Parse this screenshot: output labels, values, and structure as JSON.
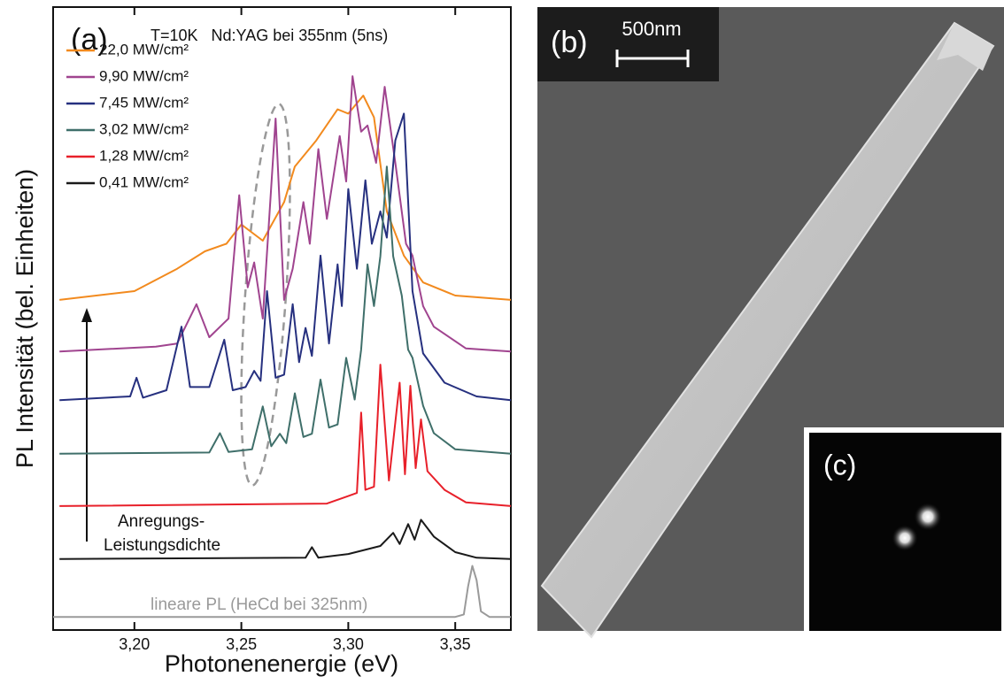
{
  "chart_data": {
    "type": "line",
    "panel_label": "(a)",
    "title": "T=10K   Nd:YAG bei 355nm (5ns)",
    "xlabel": "Photonenenergie (eV)",
    "ylabel": "PL Intensität (bel. Einheiten)",
    "arrow_label": [
      "Anregungs-",
      "Leistungsdichte"
    ],
    "xlim": [
      3.162,
      3.376
    ],
    "ylim": [
      0,
      100
    ],
    "xticks": [
      {
        "value": 3.2,
        "label": "3,20"
      },
      {
        "value": 3.25,
        "label": "3,25"
      },
      {
        "value": 3.3,
        "label": "3,30"
      },
      {
        "value": 3.35,
        "label": "3,35"
      }
    ],
    "legend": "upper left",
    "series": [
      {
        "name": "22,0 MW/cm²",
        "color": "#f28a1e",
        "x": [
          3.165,
          3.2,
          3.22,
          3.233,
          3.243,
          3.25,
          3.26,
          3.27,
          3.275,
          3.285,
          3.295,
          3.3,
          3.307,
          3.312,
          3.318,
          3.326,
          3.335,
          3.35,
          3.376
        ],
        "values": [
          53,
          54.4,
          58,
          60.8,
          62,
          65.1,
          62.5,
          68.7,
          74.4,
          78.6,
          83.6,
          82.9,
          85.8,
          82.3,
          67.2,
          60.1,
          55.8,
          53.7,
          53
        ]
      },
      {
        "name": "9,90 MW/cm²",
        "color": "#a0448f",
        "x": [
          3.165,
          3.21,
          3.22,
          3.229,
          3.235,
          3.244,
          3.249,
          3.253,
          3.256,
          3.26,
          3.266,
          3.27,
          3.274,
          3.279,
          3.282,
          3.286,
          3.29,
          3.296,
          3.299,
          3.302,
          3.306,
          3.309,
          3.313,
          3.317,
          3.322,
          3.327,
          3.33,
          3.335,
          3.34,
          3.355,
          3.376
        ],
        "values": [
          44.7,
          45.5,
          46,
          52.3,
          47,
          50,
          69.8,
          55,
          59,
          50,
          82.1,
          53,
          58,
          68.7,
          62,
          77.2,
          66,
          79.3,
          72,
          88.9,
          80,
          81,
          75,
          87.2,
          75,
          62,
          60.1,
          52,
          48.7,
          45.2,
          44.7
        ]
      },
      {
        "name": "7,45 MW/cm²",
        "color": "#26307f",
        "x": [
          3.165,
          3.198,
          3.201,
          3.204,
          3.215,
          3.222,
          3.226,
          3.235,
          3.242,
          3.246,
          3.252,
          3.256,
          3.259,
          3.262,
          3.266,
          3.27,
          3.274,
          3.277,
          3.28,
          3.283,
          3.287,
          3.291,
          3.295,
          3.297,
          3.3,
          3.304,
          3.308,
          3.311,
          3.315,
          3.318,
          3.322,
          3.326,
          3.33,
          3.335,
          3.345,
          3.36,
          3.376
        ],
        "values": [
          36.9,
          37.5,
          40.5,
          37.3,
          38.5,
          48.7,
          39,
          39,
          46.6,
          38.5,
          39,
          41.6,
          40,
          54.4,
          40.5,
          41,
          52.3,
          43,
          48.5,
          44,
          60.1,
          46,
          58.7,
          52,
          70.8,
          58,
          72.2,
          62,
          67.2,
          63,
          78.6,
          82.9,
          54.4,
          44.4,
          39.7,
          37.5,
          36.9
        ]
      },
      {
        "name": "3,02 MW/cm²",
        "color": "#3f6f6a",
        "x": [
          3.165,
          3.235,
          3.24,
          3.244,
          3.255,
          3.26,
          3.264,
          3.268,
          3.271,
          3.275,
          3.279,
          3.283,
          3.287,
          3.291,
          3.295,
          3.299,
          3.303,
          3.306,
          3.309,
          3.312,
          3.315,
          3.318,
          3.321,
          3.325,
          3.328,
          3.33,
          3.335,
          3.34,
          3.35,
          3.376
        ],
        "values": [
          28.3,
          28.5,
          31.6,
          28.6,
          29,
          35.9,
          29.5,
          31.5,
          30,
          38,
          31,
          31.5,
          40.2,
          32.5,
          33,
          43.7,
          37,
          45,
          58.7,
          52,
          60,
          74.4,
          60,
          53.7,
          45,
          43.7,
          36,
          31.6,
          29,
          28.3
        ]
      },
      {
        "name": "1,28 MW/cm²",
        "color": "#e8202a",
        "x": [
          3.165,
          3.29,
          3.3,
          3.304,
          3.306,
          3.308,
          3.312,
          3.315,
          3.319,
          3.324,
          3.3265,
          3.329,
          3.3315,
          3.334,
          3.337,
          3.345,
          3.355,
          3.376
        ],
        "values": [
          19.9,
          20.3,
          21.5,
          22,
          34.9,
          22.5,
          23,
          42.6,
          24,
          39.7,
          25,
          39.2,
          26,
          33.8,
          25.5,
          22.5,
          20.5,
          19.9
        ]
      },
      {
        "name": "0,41 MW/cm²",
        "color": "#1a1a1a",
        "x": [
          3.165,
          3.28,
          3.283,
          3.286,
          3.3,
          3.315,
          3.321,
          3.324,
          3.328,
          3.331,
          3.334,
          3.34,
          3.35,
          3.36,
          3.376
        ],
        "values": [
          11.4,
          11.6,
          13.3,
          11.6,
          12.2,
          13.5,
          15.6,
          13.8,
          17,
          14.5,
          17.7,
          15,
          12.5,
          11.6,
          11.4
        ]
      }
    ],
    "reference": {
      "name": "lineare PL (HeCd bei 325nm)",
      "color": "#9a9a9a",
      "x": [
        3.162,
        3.35,
        3.354,
        3.356,
        3.358,
        3.36,
        3.362,
        3.366,
        3.376
      ],
      "values": [
        2.1,
        2.1,
        2.5,
        7,
        10.3,
        8,
        3,
        2.1,
        2.1
      ]
    }
  },
  "image_b": {
    "label": "(b)",
    "scale_bar": "500nm"
  },
  "image_c": {
    "label": "(c)"
  }
}
